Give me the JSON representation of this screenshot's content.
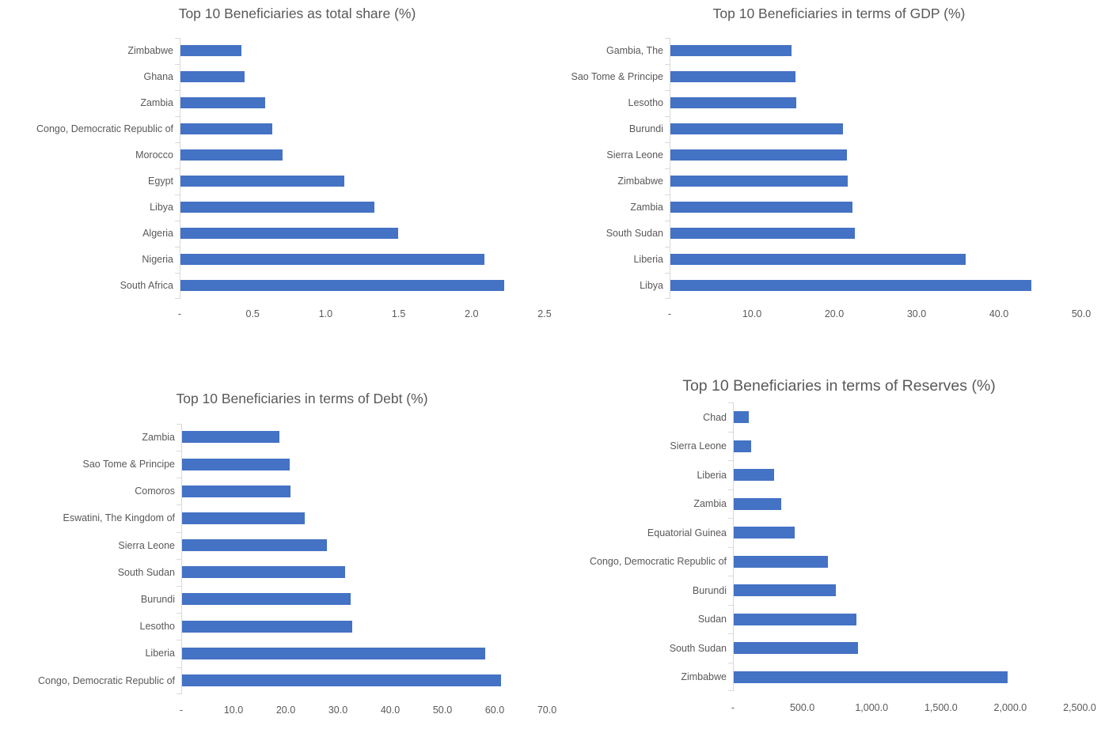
{
  "colors": {
    "bar": "#4472C4",
    "title_text": "#595959",
    "label_text": "#595959",
    "tick_text": "#595959",
    "axis_line": "#D9D9D9",
    "background": "#FFFFFF"
  },
  "chart_data": [
    {
      "type": "bar",
      "orientation": "horizontal",
      "title": "Top 10 Beneficiaries as total share (%)",
      "categories": [
        "Zimbabwe",
        "Ghana",
        "Zambia",
        "Congo, Democratic Republic of",
        "Morocco",
        "Egypt",
        "Libya",
        "Algeria",
        "Nigeria",
        "South Africa"
      ],
      "values": [
        0.42,
        0.44,
        0.58,
        0.63,
        0.7,
        1.12,
        1.33,
        1.49,
        2.08,
        2.22
      ],
      "xlim": [
        0,
        2.5
      ],
      "xticks": [
        0,
        0.5,
        1.0,
        1.5,
        2.0,
        2.5
      ],
      "xtick_labels": [
        "-",
        "0.5",
        "1.0",
        "1.5",
        "2.0",
        "2.5"
      ],
      "grid": false,
      "legend": null,
      "bar_color": "#4472C4"
    },
    {
      "type": "bar",
      "orientation": "horizontal",
      "title": "Top 10 Beneficiaries in terms of GDP (%)",
      "categories": [
        "Gambia, The",
        "Sao Tome & Principe",
        "Lesotho",
        "Burundi",
        "Sierra Leone",
        "Zimbabwe",
        "Zambia",
        "South Sudan",
        "Liberia",
        "Libya"
      ],
      "values": [
        14.7,
        15.2,
        15.3,
        21.0,
        21.4,
        21.5,
        22.1,
        22.4,
        35.9,
        43.8
      ],
      "xlim": [
        0,
        50
      ],
      "xticks": [
        0,
        10,
        20,
        30,
        40,
        50
      ],
      "xtick_labels": [
        "-",
        "10.0",
        "20.0",
        "30.0",
        "40.0",
        "50.0"
      ],
      "grid": false,
      "legend": null,
      "bar_color": "#4472C4"
    },
    {
      "type": "bar",
      "orientation": "horizontal",
      "title": "Top 10 Beneficiaries in terms of Debt (%)",
      "categories": [
        "Zambia",
        "Sao Tome & Principe",
        "Comoros",
        "Eswatini, The Kingdom of",
        "Sierra Leone",
        "South Sudan",
        "Burundi",
        "Lesotho",
        "Liberia",
        "Congo, Democratic Republic of"
      ],
      "values": [
        18.6,
        20.6,
        20.8,
        23.5,
        27.7,
        31.2,
        32.3,
        32.6,
        58.0,
        61.1
      ],
      "xlim": [
        0,
        70
      ],
      "xticks": [
        0,
        10,
        20,
        30,
        40,
        50,
        60,
        70
      ],
      "xtick_labels": [
        "-",
        "10.0",
        "20.0",
        "30.0",
        "40.0",
        "50.0",
        "60.0",
        "70.0"
      ],
      "grid": false,
      "legend": null,
      "bar_color": "#4472C4"
    },
    {
      "type": "bar",
      "orientation": "horizontal",
      "title": "Top 10 Beneficiaries in terms of Reserves (%)",
      "categories": [
        "Chad",
        "Sierra Leone",
        "Liberia",
        "Zambia",
        "Equatorial Guinea",
        "Congo, Democratic Republic of",
        "Burundi",
        "Sudan",
        "South Sudan",
        "Zimbabwe"
      ],
      "values": [
        110,
        125,
        293,
        345,
        438,
        680,
        735,
        885,
        895,
        1975
      ],
      "xlim": [
        0,
        2500
      ],
      "xticks": [
        0,
        500,
        1000,
        1500,
        2000,
        2500
      ],
      "xtick_labels": [
        "-",
        "500.0",
        "1,000.0",
        "1,500.0",
        "2,000.0",
        "2,500.0"
      ],
      "grid": false,
      "legend": null,
      "bar_color": "#4472C4"
    }
  ]
}
